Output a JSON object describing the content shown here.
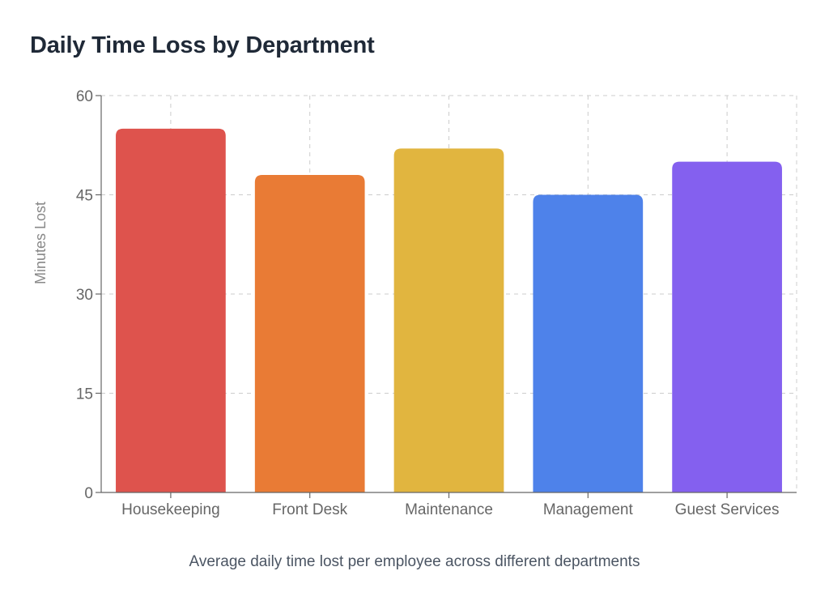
{
  "chart_data": {
    "type": "bar",
    "title": "Daily Time Loss by Department",
    "subtitle": "Average daily time lost per employee across different departments",
    "xlabel": "",
    "ylabel": "Minutes Lost",
    "categories": [
      "Housekeeping",
      "Front Desk",
      "Maintenance",
      "Management",
      "Guest Services"
    ],
    "values": [
      55,
      48,
      52,
      45,
      50
    ],
    "colors": [
      "#de534d",
      "#e97b35",
      "#e1b53f",
      "#4e82ea",
      "#8460ef"
    ],
    "ylim": [
      0,
      60
    ],
    "yticks": [
      0,
      15,
      30,
      45,
      60
    ],
    "grid": true,
    "legend": "none"
  }
}
